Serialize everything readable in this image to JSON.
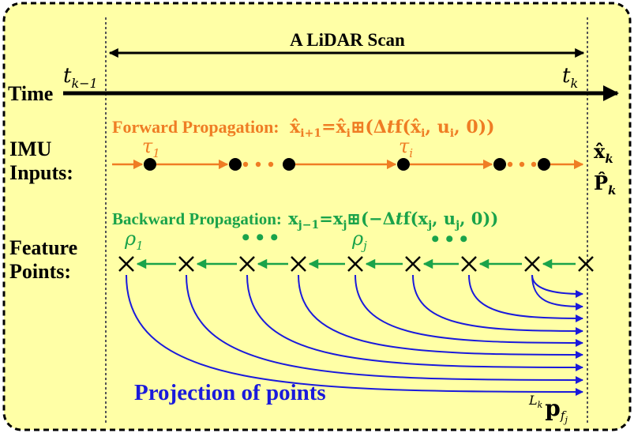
{
  "scan_label": "A LiDAR Scan",
  "time_label": "Time",
  "t_start": {
    "base": "t",
    "sub": "k−1"
  },
  "t_end": {
    "base": "t",
    "sub": "k"
  },
  "imu_label": [
    "IMU",
    "Inputs:"
  ],
  "feature_label": [
    "Feature",
    "Points:"
  ],
  "forward": {
    "title": "Forward Propagation:",
    "formula": {
      "lhs": "x̂",
      "lhs_sub": "i+1",
      "eq": "=",
      "x": "x̂",
      "x_sub": "i",
      "op": "⊞",
      "open": "(Δ",
      "t": "t",
      "f": "f",
      "args_open": "(",
      "arg1": "x̂",
      "arg1_sub": "i",
      "arg2": "u",
      "arg2_sub": "i",
      "zero": "0",
      "close": "))"
    },
    "tau_1": {
      "base": "τ",
      "sub": "1"
    },
    "tau_i": {
      "base": "τ",
      "sub": "i"
    },
    "dots": "• • •"
  },
  "backward": {
    "title": "Backward Propagation:",
    "formula": {
      "lhs": "x",
      "lhs_sub": "j−1",
      "eq": "=",
      "x": "x",
      "x_sub": "j",
      "op": "⊞",
      "open": "(−Δ",
      "t": "t",
      "f": "f",
      "args_open": "(",
      "arg1": "x",
      "arg1_sub": "j",
      "arg2": "u",
      "arg2_sub": "j",
      "zero": "0",
      "close": "))"
    },
    "rho_1": {
      "base": "ρ",
      "sub": "1"
    },
    "rho_j": {
      "base": "ρ",
      "sub": "j"
    },
    "dots": "• • •"
  },
  "state_x": {
    "base": "x̂",
    "sub": "k"
  },
  "state_p": {
    "base": "P̂",
    "sub": "k"
  },
  "projection_label": "Projection of points",
  "proj_point": {
    "pre": "L",
    "pre_sub": "k",
    "base": "p",
    "sub": "f",
    "subsub": "j"
  },
  "colors": {
    "background": "#ffffa6",
    "border": "#000000",
    "forward": "#ef7d24",
    "backward": "#1aa34a",
    "projection": "#1a1adb",
    "imu_dot": "#000000"
  }
}
